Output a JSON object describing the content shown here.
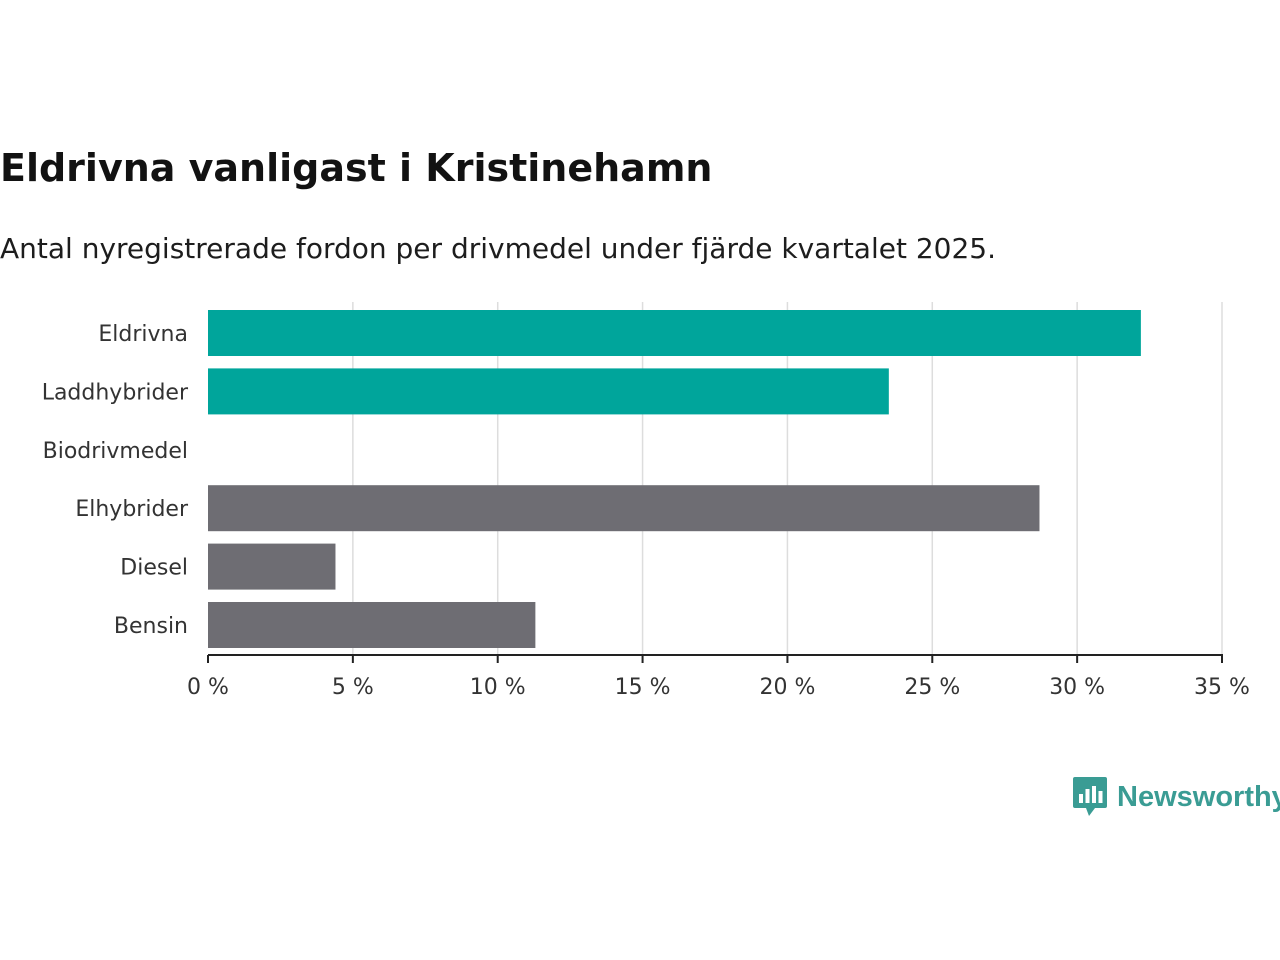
{
  "header": {
    "title": "Eldrivna vanligast i Kristinehamn",
    "subtitle": "Antal nyregistrerade fordon per drivmedel under fjärde kvartalet 2025."
  },
  "brand": {
    "name": "Newsworthy",
    "icon": "newsworthy-logo-icon",
    "color": "#3a9c94"
  },
  "chart_data": {
    "type": "bar",
    "orientation": "horizontal",
    "title": "Eldrivna vanligast i Kristinehamn",
    "subtitle": "Antal nyregistrerade fordon per drivmedel under fjärde kvartalet 2025.",
    "xlabel": "",
    "ylabel": "",
    "categories": [
      "Eldrivna",
      "Laddhybrider",
      "Biodrivmedel",
      "Elhybrider",
      "Diesel",
      "Bensin"
    ],
    "values": [
      32.2,
      23.5,
      0,
      28.7,
      4.4,
      11.3
    ],
    "colors": [
      "#00a59b",
      "#00a59b",
      "#00a59b",
      "#6e6d73",
      "#6e6d73",
      "#6e6d73"
    ],
    "xlim": [
      0,
      35
    ],
    "ticks": [
      0,
      5,
      10,
      15,
      20,
      25,
      30,
      35
    ],
    "tick_labels": [
      "0 %",
      "5 %",
      "10 %",
      "15 %",
      "20 %",
      "25 %",
      "30 %",
      "35 %"
    ],
    "grid": true
  }
}
